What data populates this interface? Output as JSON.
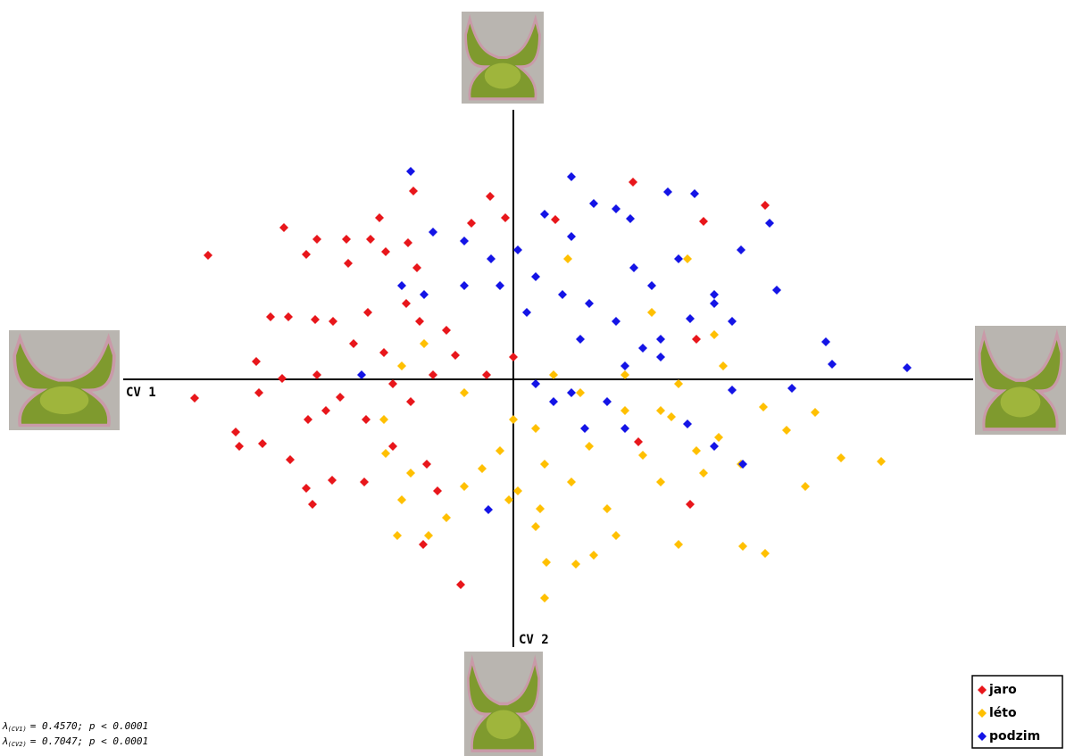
{
  "chart_data": {
    "type": "scatter",
    "x_label": "CV 1",
    "y_label": "CV 2",
    "xlim": [
      -4.37,
      5.15
    ],
    "ylim": [
      -3.0,
      3.02
    ],
    "legend": "bottom-right",
    "annotations": [
      {
        "symbol": "λ",
        "subscript": "(CV1)",
        "text": "= 0.4570; p < 0.0001"
      },
      {
        "symbol": "λ",
        "subscript": "(CV2)",
        "text": "= 0.7047; p < 0.0001"
      }
    ],
    "series": [
      {
        "name": "jaro",
        "color": "#e8161b",
        "x": [
          -3.42,
          -3.57,
          -2.57,
          -1.12,
          -0.26,
          1.34,
          2.82,
          2.13,
          -1.5,
          -2.2,
          -1.87,
          -1.6,
          -1.18,
          -0.09,
          -2.32,
          -1.85,
          -1.43,
          -1.08,
          -2.72,
          -2.52,
          -2.88,
          -2.59,
          -2.85,
          -2.22,
          -2.02,
          -1.79,
          -1.63,
          -1.45,
          -1.2,
          -1.05,
          -1.35,
          -1.15,
          -0.9,
          -0.75,
          -0.65,
          -2.2,
          -2.1,
          -2.3,
          -1.94,
          -1.65,
          -3.11,
          -3.07,
          -2.81,
          -2.5,
          -2.32,
          -2.25,
          -2.03,
          -1.67,
          -1.35,
          -0.97,
          -1.01,
          -0.59,
          -0.85,
          -0.3,
          0.0,
          0.47,
          2.05,
          1.98,
          1.4,
          -0.47
        ],
        "y": [
          1.39,
          -0.21,
          1.7,
          2.11,
          2.05,
          2.21,
          1.95,
          1.77,
          1.81,
          1.57,
          1.57,
          1.57,
          1.53,
          1.81,
          1.4,
          1.3,
          1.43,
          1.25,
          0.7,
          0.7,
          0.2,
          0.01,
          -0.15,
          0.67,
          0.65,
          0.4,
          0.75,
          0.3,
          0.85,
          0.65,
          -0.05,
          -0.25,
          0.05,
          0.55,
          0.27,
          0.05,
          -0.35,
          -0.45,
          -0.2,
          -0.45,
          -0.59,
          -0.75,
          -0.72,
          -0.9,
          -1.22,
          -1.4,
          -1.13,
          -1.15,
          -0.75,
          -0.95,
          -1.85,
          -2.3,
          -1.25,
          0.05,
          0.25,
          1.79,
          0.45,
          -1.4,
          -0.7,
          1.75
        ]
      },
      {
        "name": "léto",
        "color": "#ffc000",
        "x": [
          0.35,
          0.7,
          0.37,
          0.9,
          1.85,
          2.57,
          2.82,
          3.27,
          3.67,
          4.12,
          3.38,
          2.8,
          3.06,
          2.3,
          2.13,
          2.55,
          1.65,
          1.45,
          1.25,
          0.85,
          0.65,
          0.35,
          0.05,
          0.0,
          -0.15,
          -0.35,
          -0.55,
          -0.75,
          -0.95,
          -1.3,
          -1.25,
          -1.15,
          -1.43,
          -1.45,
          -1.25,
          -1.0,
          -0.55,
          0.25,
          0.45,
          0.75,
          1.25,
          1.55,
          1.95,
          2.25,
          2.35,
          1.85,
          1.65,
          0.25,
          -0.05,
          0.61,
          0.3,
          1.05,
          1.15,
          2.05,
          1.77
        ],
        "y": [
          -2.45,
          -2.07,
          -2.05,
          -1.97,
          -1.85,
          -1.87,
          -1.95,
          -1.2,
          -0.88,
          -0.92,
          -0.37,
          -0.31,
          -0.57,
          -0.65,
          -1.05,
          -0.95,
          -1.15,
          -0.85,
          -0.35,
          -0.75,
          -1.15,
          -0.95,
          -1.25,
          -0.45,
          -0.8,
          -1.0,
          -1.2,
          -1.55,
          -1.75,
          -1.75,
          -1.35,
          -1.05,
          -0.83,
          -0.45,
          0.15,
          0.4,
          -0.15,
          -0.55,
          0.05,
          -0.15,
          0.05,
          0.75,
          1.35,
          0.5,
          0.15,
          -0.05,
          -0.35,
          -1.65,
          -1.35,
          1.35,
          -1.45,
          -1.45,
          -1.75,
          -0.8,
          -0.42
        ]
      },
      {
        "name": "podzim",
        "color": "#1414e6",
        "x": [
          -1.15,
          0.65,
          1.73,
          2.03,
          2.87,
          2.55,
          2.95,
          3.5,
          3.57,
          4.41,
          3.12,
          2.45,
          2.57,
          2.25,
          1.95,
          1.65,
          1.25,
          1.15,
          0.75,
          0.55,
          0.25,
          0.05,
          -0.25,
          -0.55,
          -0.9,
          0.35,
          0.9,
          1.15,
          1.31,
          0.65,
          1.55,
          1.85,
          2.25,
          2.45,
          0.8,
          0.45,
          0.25,
          0.65,
          1.05,
          1.25,
          -0.28,
          -0.55,
          -1.25,
          -1.0,
          -0.15,
          0.15,
          0.85,
          1.45,
          1.65,
          2.25,
          1.98,
          1.35,
          -1.7
        ],
        "y": [
          2.33,
          2.27,
          2.1,
          2.08,
          1.75,
          1.45,
          1.0,
          0.42,
          0.17,
          0.13,
          -0.1,
          -0.12,
          -0.95,
          -0.75,
          -0.5,
          0.25,
          0.15,
          0.65,
          0.45,
          0.95,
          1.15,
          1.45,
          1.35,
          1.55,
          1.65,
          1.85,
          1.97,
          1.91,
          1.8,
          1.6,
          1.05,
          1.35,
          0.85,
          0.65,
          -0.55,
          -0.25,
          -0.05,
          -0.15,
          -0.25,
          -0.55,
          -1.46,
          1.05,
          1.05,
          0.95,
          1.05,
          0.75,
          0.85,
          0.35,
          0.45,
          0.95,
          0.68,
          1.25,
          0.05
        ]
      }
    ]
  }
}
